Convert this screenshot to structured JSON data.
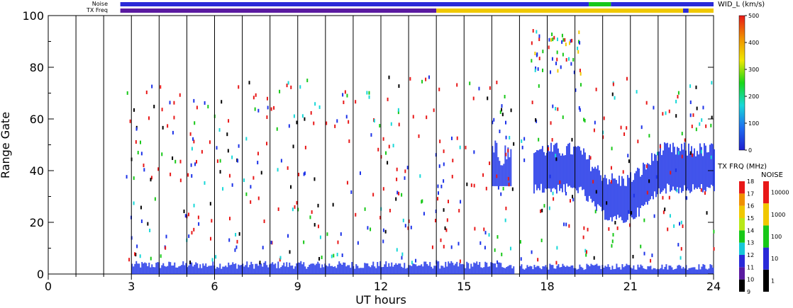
{
  "chart_data": {
    "type": "heatmap",
    "xlabel": "UT hours",
    "ylabel": "Range Gate",
    "xlim": [
      0,
      24
    ],
    "ylim": [
      0,
      100
    ],
    "x_ticks": [
      "0",
      "3",
      "6",
      "9",
      "12",
      "15",
      "18",
      "21",
      "24"
    ],
    "y_ticks": [
      "0",
      "20",
      "40",
      "60",
      "80",
      "100"
    ],
    "scan_boundaries_ut": [
      1,
      2,
      3,
      4,
      5,
      6,
      7,
      8,
      9,
      10,
      11,
      12,
      13,
      14,
      15,
      16,
      17,
      18,
      19,
      20,
      21,
      22,
      23
    ],
    "data_gap_ut": [
      16.8,
      17.0
    ],
    "strip_labels": {
      "noise": "Noise",
      "txfreq": "TX Freq"
    },
    "strips": {
      "noise_segments": [
        {
          "from": 2.6,
          "to": 19.5,
          "color": "#2a2ad8"
        },
        {
          "from": 19.5,
          "to": 20.3,
          "color": "#18c818"
        },
        {
          "from": 20.3,
          "to": 24,
          "color": "#2a2ad8"
        }
      ],
      "txfreq_segments": [
        {
          "from": 2.6,
          "to": 14.0,
          "color": "#5a1aa0"
        },
        {
          "from": 14.0,
          "to": 22.9,
          "color": "#f0c800"
        },
        {
          "from": 22.9,
          "to": 23.1,
          "color": "#2a2ad8"
        },
        {
          "from": 23.1,
          "to": 24,
          "color": "#f0c800"
        }
      ]
    },
    "echo_bands": [
      {
        "name": "near-range",
        "ut_from": 3.0,
        "ut_to": 16.8,
        "gate_from": 0,
        "gate_to": 5,
        "color": "#1c32e8"
      },
      {
        "name": "near-range-late",
        "ut_from": 17.0,
        "ut_to": 24.0,
        "gate_from": 0,
        "gate_to": 4,
        "color": "#1c32e8"
      },
      {
        "name": "mid-range",
        "ut_from": 17.5,
        "ut_to": 24.0,
        "gate_from": 26,
        "gate_to": 50,
        "color": "#1c32e8"
      },
      {
        "name": "mid-range-early",
        "ut_from": 16.0,
        "ut_to": 16.7,
        "gate_from": 34,
        "gate_to": 52,
        "color": "#1c32e8"
      }
    ],
    "colorbars": [
      {
        "title": "WID_L (km/s)",
        "ticks": [
          "0",
          "100",
          "200",
          "300",
          "400",
          "500"
        ],
        "range": [
          0,
          500
        ]
      },
      {
        "title": "TX FRQ (MHz)",
        "ticks": [
          "9",
          "10",
          "11",
          "12",
          "13",
          "14",
          "15",
          "16",
          "17",
          "18"
        ],
        "range": [
          9,
          18
        ]
      },
      {
        "title": "NOISE",
        "ticks": [
          "1",
          "10",
          "100",
          "1000",
          "10000"
        ],
        "scale": "log"
      }
    ]
  }
}
